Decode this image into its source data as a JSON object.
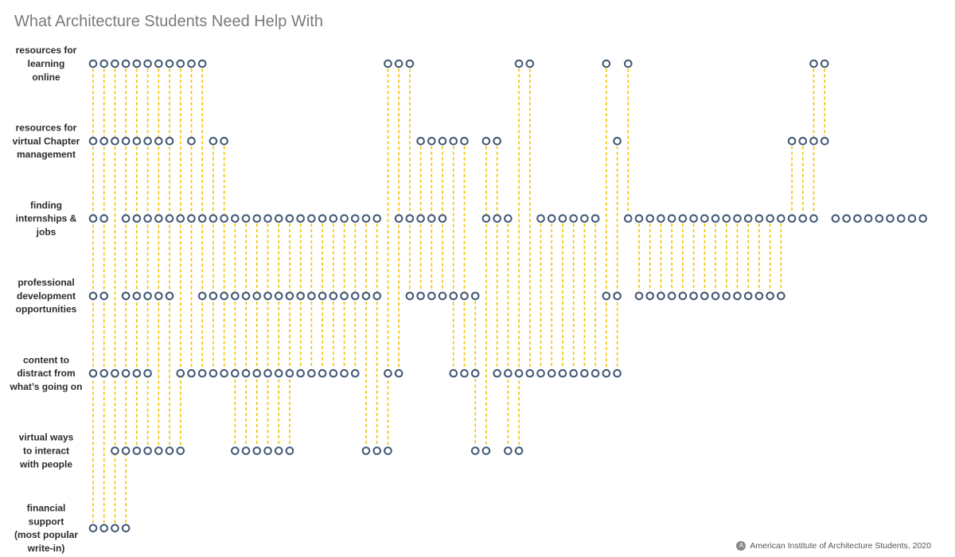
{
  "chart_data": {
    "type": "scatter",
    "title": "What Architecture Students Need Help With",
    "categories": [
      [
        "resources for",
        "learning",
        "online"
      ],
      [
        "resources for",
        "virtual Chapter",
        "management"
      ],
      [
        "finding",
        "internships &",
        "jobs"
      ],
      [
        "professional",
        "development",
        "opportunities"
      ],
      [
        "content to",
        "distract from",
        "what’s going on"
      ],
      [
        "virtual ways",
        "to interact",
        "with people"
      ],
      [
        "financial",
        "support",
        "(most popular",
        "write-in)"
      ]
    ],
    "respondents": 77,
    "rows": [
      [
        0,
        1,
        2,
        3,
        4,
        5,
        6,
        7,
        8,
        9,
        10,
        27,
        28,
        29,
        39,
        40,
        47,
        49,
        66,
        67
      ],
      [
        0,
        1,
        2,
        3,
        4,
        5,
        6,
        7,
        9,
        11,
        12,
        30,
        31,
        32,
        33,
        34,
        36,
        37,
        48,
        64,
        65,
        66,
        67
      ],
      [
        0,
        1,
        3,
        4,
        5,
        6,
        7,
        8,
        9,
        10,
        11,
        12,
        13,
        14,
        15,
        16,
        17,
        18,
        19,
        20,
        21,
        22,
        23,
        24,
        25,
        26,
        28,
        29,
        30,
        31,
        32,
        36,
        37,
        38,
        41,
        42,
        43,
        44,
        45,
        46,
        49,
        50,
        51,
        52,
        53,
        54,
        55,
        56,
        57,
        58,
        59,
        60,
        61,
        62,
        63,
        64,
        65,
        66,
        68,
        69,
        70,
        71,
        72,
        73,
        74,
        75,
        76
      ],
      [
        0,
        1,
        3,
        4,
        5,
        6,
        7,
        10,
        11,
        12,
        13,
        14,
        15,
        16,
        17,
        18,
        19,
        20,
        21,
        22,
        23,
        24,
        25,
        26,
        29,
        30,
        31,
        32,
        33,
        34,
        35,
        47,
        48,
        50,
        51,
        52,
        53,
        54,
        55,
        56,
        57,
        58,
        59,
        60,
        61,
        62,
        63
      ],
      [
        0,
        1,
        2,
        3,
        4,
        5,
        8,
        9,
        10,
        11,
        12,
        13,
        14,
        15,
        16,
        17,
        18,
        19,
        20,
        21,
        22,
        23,
        24,
        27,
        28,
        33,
        34,
        35,
        37,
        38,
        39,
        40,
        41,
        42,
        43,
        44,
        45,
        46,
        47,
        48
      ],
      [
        2,
        3,
        4,
        5,
        6,
        7,
        8,
        13,
        14,
        15,
        16,
        17,
        18,
        25,
        26,
        27,
        35,
        36,
        38,
        39
      ],
      [
        0,
        1,
        2,
        3
      ]
    ],
    "colors": {
      "circle": "#3d5573",
      "connector": "#f2c300"
    }
  },
  "credit": {
    "logo": "A",
    "text": "American Institute of Architecture Students, 2020"
  }
}
